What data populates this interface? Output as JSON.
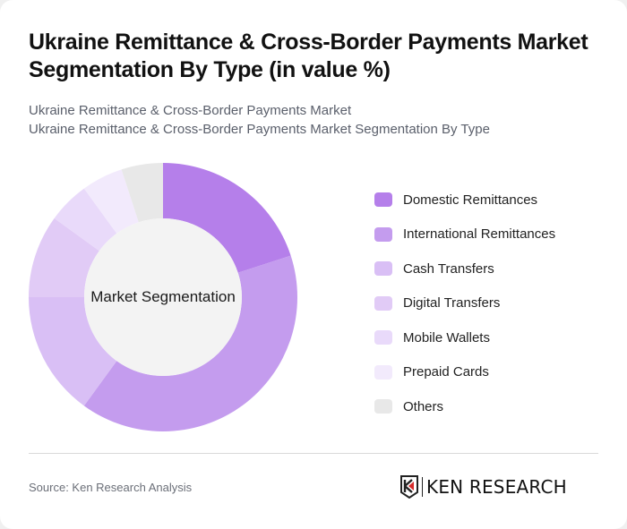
{
  "header": {
    "title": "Ukraine Remittance & Cross-Border Payments Market Segmentation By Type (in value %)",
    "subtitle_line1": "Ukraine Remittance & Cross-Border Payments Market",
    "subtitle_line2": "Ukraine Remittance & Cross-Border Payments Market Segmentation By Type"
  },
  "chart": {
    "center_label": "Market Segmentation"
  },
  "legend": {
    "items": [
      {
        "label": "Domestic Remittances",
        "color": "#b57fea"
      },
      {
        "label": "International Remittances",
        "color": "#c49cee"
      },
      {
        "label": "Cash Transfers",
        "color": "#d9bff5"
      },
      {
        "label": "Digital Transfers",
        "color": "#e1cbf6"
      },
      {
        "label": "Mobile Wallets",
        "color": "#e9dafa"
      },
      {
        "label": "Prepaid Cards",
        "color": "#f2eafc"
      },
      {
        "label": "Others",
        "color": "#e8e8e8"
      }
    ]
  },
  "footer": {
    "source": "Source: Ken Research Analysis",
    "logo_text": "KEN RESEARCH"
  },
  "chart_data": {
    "type": "pie",
    "subtype": "donut",
    "title": "Ukraine Remittance & Cross-Border Payments Market Segmentation By Type (in value %)",
    "center_label": "Market Segmentation",
    "categories": [
      "Domestic Remittances",
      "International Remittances",
      "Cash Transfers",
      "Digital Transfers",
      "Mobile Wallets",
      "Prepaid Cards",
      "Others"
    ],
    "values": [
      20,
      40,
      15,
      10,
      5,
      5,
      5
    ],
    "colors": [
      "#b57fea",
      "#c49cee",
      "#d9bff5",
      "#e1cbf6",
      "#e9dafa",
      "#f2eafc",
      "#e8e8e8"
    ],
    "unit": "%",
    "legend_position": "right",
    "start_angle": "top, clockwise"
  }
}
